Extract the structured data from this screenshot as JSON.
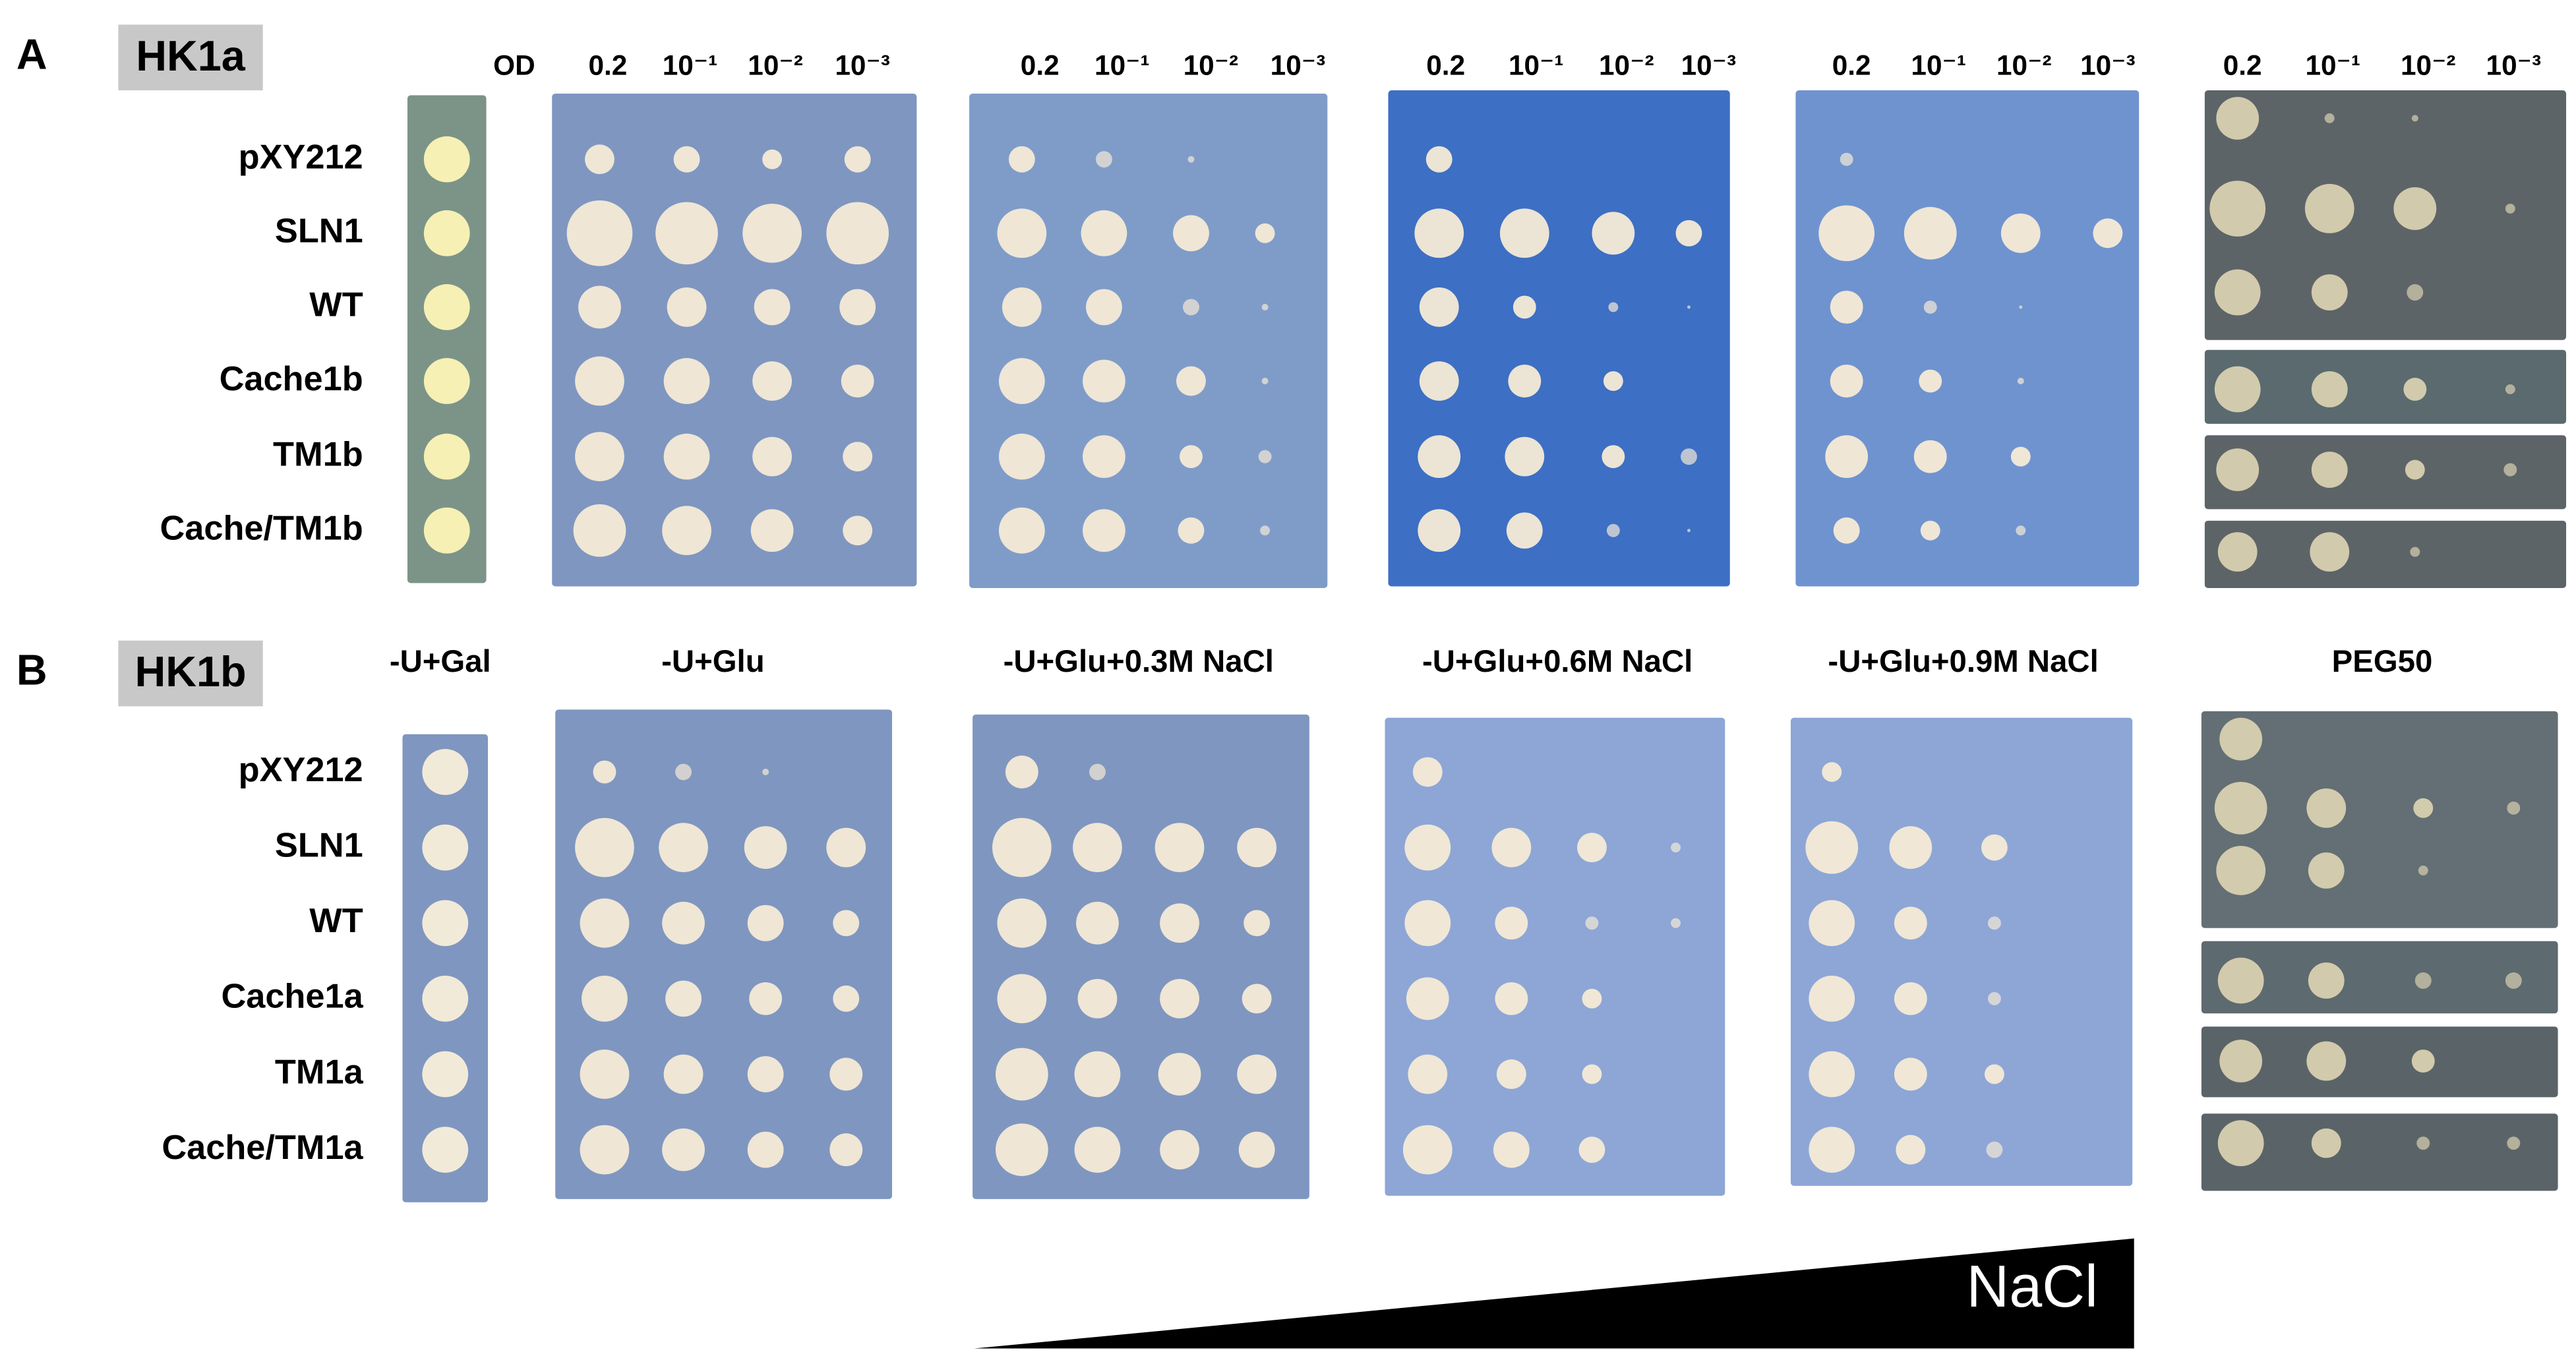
{
  "panels": [
    {
      "label": "A",
      "construct": "HK1a",
      "od_label": "OD",
      "dilution_headers": [
        [
          "0.2",
          "10⁻¹",
          "10⁻²",
          "10⁻³"
        ],
        [
          "0.2",
          "10⁻¹",
          "10⁻²",
          "10⁻³"
        ],
        [
          "0.2",
          "10⁻¹",
          "10⁻²",
          "10⁻³"
        ],
        [
          "0.2",
          "10⁻¹",
          "10⁻²",
          "10⁻³"
        ],
        [
          "0.2",
          "10⁻¹",
          "10⁻²",
          "10⁻³"
        ]
      ],
      "strains": [
        "pXY212",
        "SLN1",
        "WT",
        "Cache1b",
        "TM1b",
        "Cache/TM1b"
      ]
    },
    {
      "label": "B",
      "construct": "HK1b",
      "conditions": [
        "-U+Gal",
        "-U+Glu",
        "-U+Glu+0.3M NaCl",
        "-U+Glu+0.6M NaCl",
        "-U+Glu+0.9M NaCl",
        "PEG50"
      ],
      "strains": [
        "pXY212",
        "SLN1",
        "WT",
        "Cache1a",
        "TM1a",
        "Cache/TM1a"
      ]
    }
  ],
  "gradient_label": "NaCl"
}
